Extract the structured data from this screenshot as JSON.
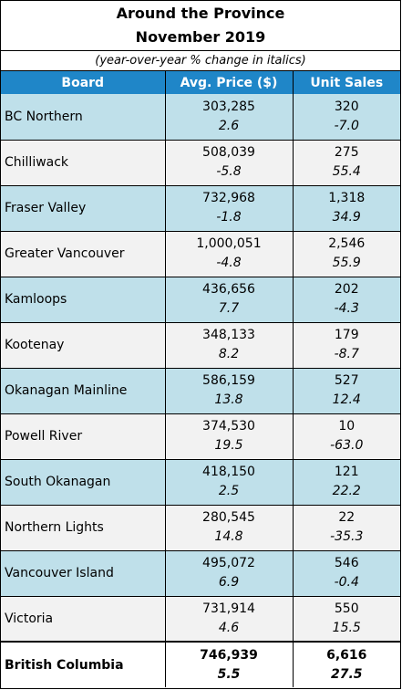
{
  "title_line1": "Around the Province",
  "title_line2": "November 2019",
  "subtitle": "(year-over-year % change in italics)",
  "headers": {
    "board": "Board",
    "price": "Avg. Price ($)",
    "sales": "Unit Sales"
  },
  "rows": [
    {
      "board": "BC Northern",
      "price": "303,285",
      "price_change": "2.6",
      "sales": "320",
      "sales_change": "-7.0"
    },
    {
      "board": "Chilliwack",
      "price": "508,039",
      "price_change": "-5.8",
      "sales": "275",
      "sales_change": "55.4"
    },
    {
      "board": "Fraser Valley",
      "price": "732,968",
      "price_change": "-1.8",
      "sales": "1,318",
      "sales_change": "34.9"
    },
    {
      "board": "Greater Vancouver",
      "price": "1,000,051",
      "price_change": "-4.8",
      "sales": "2,546",
      "sales_change": "55.9"
    },
    {
      "board": "Kamloops",
      "price": "436,656",
      "price_change": "7.7",
      "sales": "202",
      "sales_change": "-4.3"
    },
    {
      "board": "Kootenay",
      "price": "348,133",
      "price_change": "8.2",
      "sales": "179",
      "sales_change": "-8.7"
    },
    {
      "board": "Okanagan Mainline",
      "price": "586,159",
      "price_change": "13.8",
      "sales": "527",
      "sales_change": "12.4"
    },
    {
      "board": "Powell River",
      "price": "374,530",
      "price_change": "19.5",
      "sales": "10",
      "sales_change": "-63.0"
    },
    {
      "board": "South Okanagan",
      "price": "418,150",
      "price_change": "2.5",
      "sales": "121",
      "sales_change": "22.2"
    },
    {
      "board": "Northern Lights",
      "price": "280,545",
      "price_change": "14.8",
      "sales": "22",
      "sales_change": "-35.3"
    },
    {
      "board": "Vancouver Island",
      "price": "495,072",
      "price_change": "6.9",
      "sales": "546",
      "sales_change": "-0.4"
    },
    {
      "board": "Victoria",
      "price": "731,914",
      "price_change": "4.6",
      "sales": "550",
      "sales_change": "15.5"
    }
  ],
  "total": {
    "board": "British Columbia",
    "price": "746,939",
    "price_change": "5.5",
    "sales": "6,616",
    "sales_change": "27.5"
  },
  "colors": {
    "header_bg": "#1f86c8",
    "row_odd": "#bfe0ea",
    "row_even": "#f2f2f2"
  }
}
